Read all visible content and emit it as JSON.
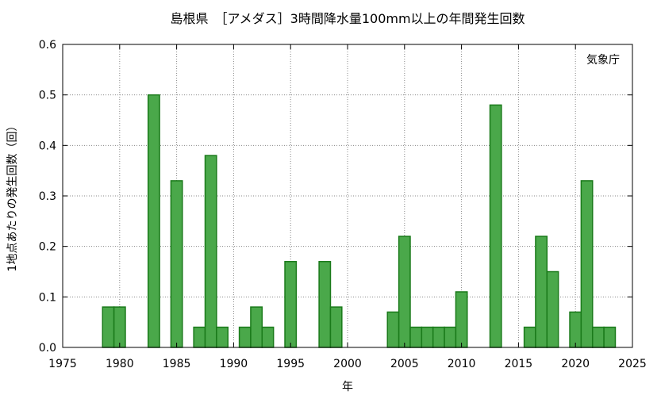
{
  "chart_data": {
    "type": "bar",
    "title": "島根県　［アメダス］3時間降水量100mm以上の年間発生回数",
    "xlabel": "年",
    "ylabel": "1地点あたりの発生回数（回）",
    "annotation": "気象庁",
    "xlim": [
      1975,
      2025
    ],
    "ylim": [
      0,
      0.6
    ],
    "x_ticks": [
      1975,
      1980,
      1985,
      1990,
      1995,
      2000,
      2005,
      2010,
      2015,
      2020,
      2025
    ],
    "y_ticks": [
      "0.0",
      "0.1",
      "0.2",
      "0.3",
      "0.4",
      "0.5",
      "0.6"
    ],
    "grid": true,
    "bar_color": "#4aa84a",
    "bar_edge_color": "#1a7a1a",
    "x": [
      1979,
      1980,
      1983,
      1985,
      1987,
      1988,
      1989,
      1991,
      1992,
      1993,
      1995,
      1998,
      1999,
      2004,
      2005,
      2006,
      2007,
      2008,
      2009,
      2010,
      2013,
      2016,
      2017,
      2018,
      2020,
      2021,
      2022,
      2023
    ],
    "values": [
      0.08,
      0.08,
      0.5,
      0.33,
      0.04,
      0.38,
      0.04,
      0.04,
      0.08,
      0.04,
      0.17,
      0.17,
      0.08,
      0.07,
      0.22,
      0.04,
      0.04,
      0.04,
      0.04,
      0.11,
      0.48,
      0.04,
      0.22,
      0.15,
      0.07,
      0.33,
      0.04,
      0.04
    ]
  }
}
